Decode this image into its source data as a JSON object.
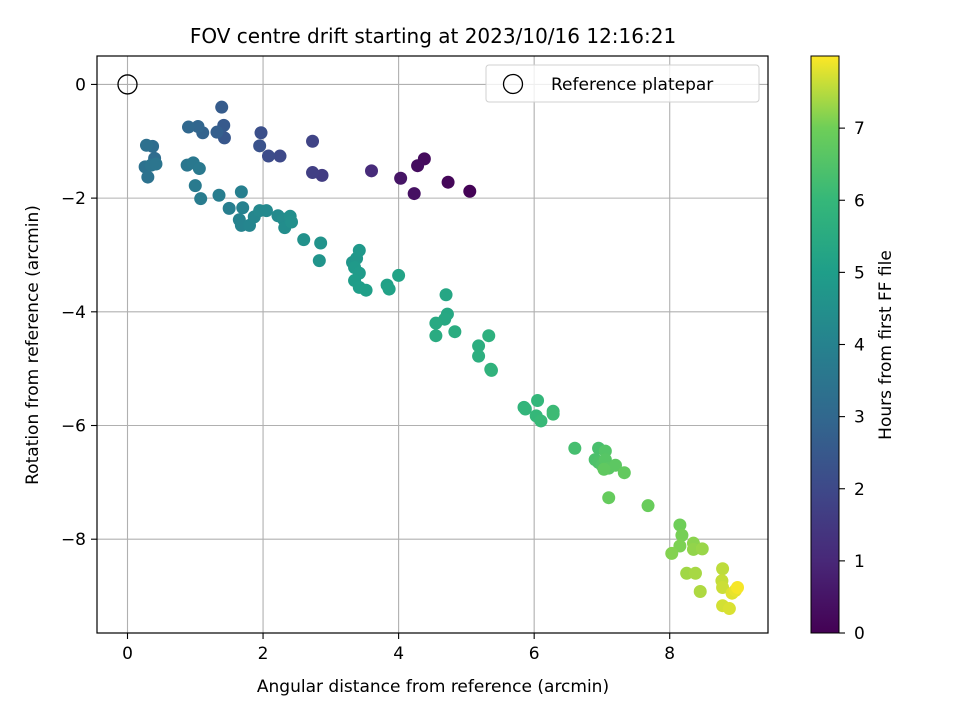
{
  "chart_data": {
    "type": "scatter",
    "title": "FOV centre drift starting at 2023/10/16 12:16:21",
    "xlabel": "Angular distance from reference (arcmin)",
    "ylabel": "Rotation from reference (arcmin)",
    "xlim": [
      -0.45,
      9.45
    ],
    "ylim": [
      -9.65,
      0.5
    ],
    "xticks": [
      0,
      2,
      4,
      6,
      8
    ],
    "yticks": [
      0,
      -2,
      -4,
      -6,
      -8
    ],
    "grid": true,
    "legend": {
      "placement": "top-right",
      "entries": [
        "Reference platepar"
      ]
    },
    "reference_point": {
      "x": 0,
      "y": 0,
      "label": "Reference platepar"
    },
    "colorbar": {
      "label": "Hours from first FF file",
      "range": [
        0,
        8
      ],
      "ticks": [
        0,
        1,
        2,
        3,
        4,
        5,
        6,
        7
      ],
      "colormap": "viridis"
    },
    "series": [
      {
        "points": [
          {
            "x": 5.05,
            "y": -1.88,
            "c": 0.05
          },
          {
            "x": 4.73,
            "y": -1.72,
            "c": 0.15
          },
          {
            "x": 4.38,
            "y": -1.31,
            "c": 0.25
          },
          {
            "x": 4.28,
            "y": -1.43,
            "c": 0.3
          },
          {
            "x": 4.23,
            "y": -1.92,
            "c": 0.4
          },
          {
            "x": 4.03,
            "y": -1.65,
            "c": 0.5
          },
          {
            "x": 3.6,
            "y": -1.52,
            "c": 1.1
          },
          {
            "x": 2.87,
            "y": -1.6,
            "c": 1.6
          },
          {
            "x": 2.73,
            "y": -1.55,
            "c": 1.7
          },
          {
            "x": 2.73,
            "y": -1.0,
            "c": 1.85
          },
          {
            "x": 2.25,
            "y": -1.26,
            "c": 2.0
          },
          {
            "x": 2.08,
            "y": -1.26,
            "c": 2.1
          },
          {
            "x": 1.97,
            "y": -0.85,
            "c": 2.2
          },
          {
            "x": 1.95,
            "y": -1.08,
            "c": 2.3
          },
          {
            "x": 1.43,
            "y": -0.94,
            "c": 2.45
          },
          {
            "x": 1.42,
            "y": -0.72,
            "c": 2.55
          },
          {
            "x": 1.39,
            "y": -0.4,
            "c": 2.6
          },
          {
            "x": 1.32,
            "y": -0.84,
            "c": 2.7
          },
          {
            "x": 1.11,
            "y": -0.85,
            "c": 2.85
          },
          {
            "x": 1.04,
            "y": -0.74,
            "c": 2.95
          },
          {
            "x": 0.9,
            "y": -0.75,
            "c": 3.0
          },
          {
            "x": 0.4,
            "y": -1.3,
            "c": 3.15
          },
          {
            "x": 0.37,
            "y": -1.09,
            "c": 3.2
          },
          {
            "x": 0.28,
            "y": -1.07,
            "c": 3.3
          },
          {
            "x": 0.26,
            "y": -1.45,
            "c": 3.35
          },
          {
            "x": 0.3,
            "y": -1.63,
            "c": 3.4
          },
          {
            "x": 0.35,
            "y": -1.42,
            "c": 3.45
          },
          {
            "x": 0.42,
            "y": -1.4,
            "c": 3.5
          },
          {
            "x": 0.88,
            "y": -1.42,
            "c": 3.55
          },
          {
            "x": 0.97,
            "y": -1.38,
            "c": 3.6
          },
          {
            "x": 1.06,
            "y": -1.48,
            "c": 3.65
          },
          {
            "x": 1.0,
            "y": -1.78,
            "c": 3.7
          },
          {
            "x": 1.08,
            "y": -2.01,
            "c": 3.75
          },
          {
            "x": 1.35,
            "y": -1.95,
            "c": 3.8
          },
          {
            "x": 1.5,
            "y": -2.18,
            "c": 3.85
          },
          {
            "x": 1.68,
            "y": -1.89,
            "c": 3.9
          },
          {
            "x": 1.7,
            "y": -2.17,
            "c": 3.95
          },
          {
            "x": 1.65,
            "y": -2.38,
            "c": 4.0
          },
          {
            "x": 1.68,
            "y": -2.48,
            "c": 4.05
          },
          {
            "x": 1.8,
            "y": -2.48,
            "c": 4.1
          },
          {
            "x": 1.87,
            "y": -2.33,
            "c": 4.15
          },
          {
            "x": 1.95,
            "y": -2.22,
            "c": 4.2
          },
          {
            "x": 2.05,
            "y": -2.22,
            "c": 4.25
          },
          {
            "x": 2.22,
            "y": -2.31,
            "c": 4.3
          },
          {
            "x": 2.3,
            "y": -2.37,
            "c": 4.35
          },
          {
            "x": 2.32,
            "y": -2.52,
            "c": 4.4
          },
          {
            "x": 2.4,
            "y": -2.32,
            "c": 4.45
          },
          {
            "x": 2.42,
            "y": -2.42,
            "c": 4.5
          },
          {
            "x": 2.6,
            "y": -2.73,
            "c": 4.55
          },
          {
            "x": 2.85,
            "y": -2.79,
            "c": 4.6
          },
          {
            "x": 2.83,
            "y": -3.1,
            "c": 4.65
          },
          {
            "x": 3.32,
            "y": -3.13,
            "c": 4.7
          },
          {
            "x": 3.38,
            "y": -3.06,
            "c": 4.75
          },
          {
            "x": 3.42,
            "y": -2.92,
            "c": 4.8
          },
          {
            "x": 3.35,
            "y": -3.22,
            "c": 4.85
          },
          {
            "x": 3.42,
            "y": -3.32,
            "c": 4.9
          },
          {
            "x": 3.35,
            "y": -3.45,
            "c": 4.95
          },
          {
            "x": 3.42,
            "y": -3.57,
            "c": 5.0
          },
          {
            "x": 3.52,
            "y": -3.62,
            "c": 5.05
          },
          {
            "x": 3.83,
            "y": -3.53,
            "c": 5.1
          },
          {
            "x": 3.86,
            "y": -3.6,
            "c": 5.15
          },
          {
            "x": 4.0,
            "y": -3.36,
            "c": 5.2
          },
          {
            "x": 4.7,
            "y": -3.7,
            "c": 5.3
          },
          {
            "x": 4.72,
            "y": -4.04,
            "c": 5.35
          },
          {
            "x": 4.68,
            "y": -4.13,
            "c": 5.4
          },
          {
            "x": 4.55,
            "y": -4.2,
            "c": 5.45
          },
          {
            "x": 4.55,
            "y": -4.42,
            "c": 5.5
          },
          {
            "x": 4.83,
            "y": -4.35,
            "c": 5.55
          },
          {
            "x": 5.18,
            "y": -4.6,
            "c": 5.6
          },
          {
            "x": 5.18,
            "y": -4.78,
            "c": 5.65
          },
          {
            "x": 5.33,
            "y": -4.42,
            "c": 5.7
          },
          {
            "x": 5.36,
            "y": -5.01,
            "c": 5.75
          },
          {
            "x": 5.37,
            "y": -5.03,
            "c": 5.8
          },
          {
            "x": 5.85,
            "y": -5.68,
            "c": 5.85
          },
          {
            "x": 5.87,
            "y": -5.71,
            "c": 5.9
          },
          {
            "x": 6.05,
            "y": -5.56,
            "c": 5.95
          },
          {
            "x": 6.03,
            "y": -5.83,
            "c": 6.0
          },
          {
            "x": 6.1,
            "y": -5.92,
            "c": 6.05
          },
          {
            "x": 6.28,
            "y": -5.75,
            "c": 6.1
          },
          {
            "x": 6.28,
            "y": -5.8,
            "c": 6.15
          },
          {
            "x": 6.6,
            "y": -6.4,
            "c": 6.3
          },
          {
            "x": 6.95,
            "y": -6.4,
            "c": 6.35
          },
          {
            "x": 6.9,
            "y": -6.6,
            "c": 6.4
          },
          {
            "x": 6.95,
            "y": -6.65,
            "c": 6.45
          },
          {
            "x": 7.0,
            "y": -6.7,
            "c": 6.5
          },
          {
            "x": 7.05,
            "y": -6.45,
            "c": 6.55
          },
          {
            "x": 7.05,
            "y": -6.6,
            "c": 6.6
          },
          {
            "x": 7.1,
            "y": -6.75,
            "c": 6.65
          },
          {
            "x": 7.2,
            "y": -6.7,
            "c": 6.7
          },
          {
            "x": 7.03,
            "y": -6.77,
            "c": 6.75
          },
          {
            "x": 7.33,
            "y": -6.83,
            "c": 6.8
          },
          {
            "x": 7.1,
            "y": -7.27,
            "c": 6.85
          },
          {
            "x": 7.68,
            "y": -7.41,
            "c": 6.9
          },
          {
            "x": 8.15,
            "y": -7.75,
            "c": 7.0
          },
          {
            "x": 8.18,
            "y": -7.93,
            "c": 7.05
          },
          {
            "x": 8.15,
            "y": -8.12,
            "c": 7.1
          },
          {
            "x": 8.03,
            "y": -8.25,
            "c": 7.15
          },
          {
            "x": 8.35,
            "y": -8.07,
            "c": 7.2
          },
          {
            "x": 8.35,
            "y": -8.18,
            "c": 7.25
          },
          {
            "x": 8.48,
            "y": -8.17,
            "c": 7.3
          },
          {
            "x": 8.25,
            "y": -8.6,
            "c": 7.35
          },
          {
            "x": 8.38,
            "y": -8.6,
            "c": 7.4
          },
          {
            "x": 8.45,
            "y": -8.92,
            "c": 7.45
          },
          {
            "x": 8.78,
            "y": -8.52,
            "c": 7.55
          },
          {
            "x": 8.77,
            "y": -8.73,
            "c": 7.6
          },
          {
            "x": 8.78,
            "y": -8.85,
            "c": 7.65
          },
          {
            "x": 8.78,
            "y": -9.17,
            "c": 7.7
          },
          {
            "x": 8.88,
            "y": -9.22,
            "c": 7.75
          },
          {
            "x": 8.92,
            "y": -8.95,
            "c": 7.8
          },
          {
            "x": 8.97,
            "y": -8.9,
            "c": 7.85
          },
          {
            "x": 9.0,
            "y": -8.85,
            "c": 7.95
          }
        ]
      }
    ]
  },
  "colors": {
    "axis": "#000000",
    "grid": "#b0b0b0",
    "reference_marker": "#000000"
  }
}
